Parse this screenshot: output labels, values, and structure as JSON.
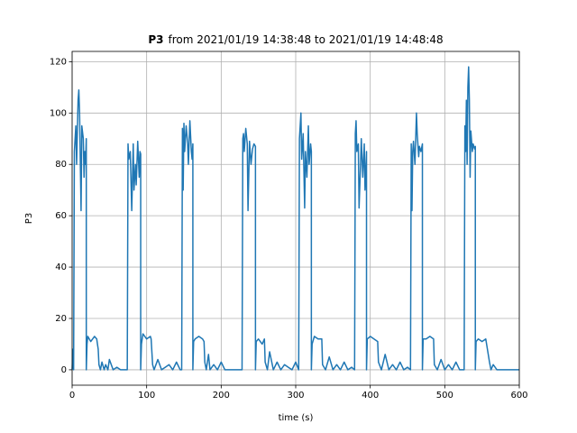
{
  "chart_data": {
    "type": "line",
    "title": [
      "P3",
      "from 2021/01/19 14:38:48 to 2021/01/19 14:48:48"
    ],
    "xlabel": "time (s)",
    "ylabel": "P3",
    "xlim": [
      0,
      600
    ],
    "ylim": [
      -6,
      124
    ],
    "xticks": [
      0,
      100,
      200,
      300,
      400,
      500,
      600
    ],
    "yticks": [
      0,
      20,
      40,
      60,
      80,
      100,
      120
    ],
    "grid": true,
    "color": "#1f77b4",
    "x": [
      0,
      1,
      2,
      3,
      5,
      6,
      8,
      9,
      10,
      12,
      13,
      15,
      16,
      17,
      18,
      19,
      19,
      20,
      21,
      25,
      30,
      33,
      35,
      36,
      38,
      40,
      43,
      45,
      48,
      50,
      55,
      60,
      65,
      70,
      74,
      75,
      76,
      78,
      80,
      82,
      83,
      85,
      86,
      88,
      90,
      91,
      92,
      92,
      93,
      95,
      100,
      105,
      106,
      108,
      110,
      115,
      120,
      125,
      130,
      135,
      140,
      145,
      147,
      148,
      149,
      150,
      151,
      152,
      153,
      155,
      156,
      158,
      160,
      161,
      162,
      162,
      163,
      165,
      170,
      175,
      177,
      178,
      180,
      183,
      185,
      190,
      195,
      200,
      205,
      210,
      220,
      228,
      229,
      230,
      231,
      233,
      235,
      236,
      238,
      240,
      242,
      244,
      246,
      246,
      247,
      250,
      255,
      258,
      259,
      262,
      265,
      270,
      275,
      280,
      285,
      290,
      295,
      300,
      304,
      305,
      306,
      307,
      308,
      310,
      312,
      313,
      315,
      317,
      318,
      320,
      321,
      321,
      322,
      325,
      330,
      335,
      336,
      340,
      345,
      350,
      355,
      360,
      365,
      370,
      375,
      379,
      380,
      381,
      382,
      384,
      385,
      387,
      388,
      390,
      392,
      393,
      395,
      395,
      396,
      400,
      405,
      410,
      411,
      415,
      420,
      425,
      430,
      435,
      440,
      445,
      450,
      454,
      455,
      456,
      457,
      458,
      460,
      462,
      463,
      465,
      466,
      468,
      470,
      470,
      471,
      475,
      480,
      485,
      486,
      490,
      495,
      500,
      505,
      510,
      515,
      520,
      526,
      527,
      528,
      529,
      530,
      531,
      532,
      533,
      534,
      535,
      537,
      538,
      540,
      541,
      541,
      542,
      545,
      550,
      555,
      560,
      562,
      565,
      570,
      580,
      590,
      600
    ],
    "values": [
      0,
      8,
      0,
      85,
      95,
      80,
      105,
      109,
      100,
      62,
      95,
      90,
      75,
      85,
      80,
      90,
      0,
      10,
      13,
      11,
      13,
      12,
      8,
      2,
      0,
      3,
      0,
      2,
      0,
      4,
      0,
      1,
      0,
      0,
      0,
      88,
      82,
      85,
      62,
      88,
      70,
      80,
      72,
      89,
      75,
      85,
      84,
      0,
      10,
      14,
      12,
      13,
      12,
      2,
      0,
      4,
      0,
      1,
      2,
      0,
      3,
      0,
      0,
      94,
      70,
      96,
      85,
      90,
      95,
      88,
      80,
      97,
      85,
      82,
      88,
      0,
      11,
      12,
      13,
      12,
      11,
      3,
      0,
      6,
      0,
      2,
      0,
      3,
      0,
      0,
      0,
      0,
      90,
      92,
      85,
      94,
      88,
      62,
      89,
      80,
      86,
      88,
      87,
      0,
      11,
      12,
      10,
      12,
      3,
      0,
      7,
      0,
      3,
      0,
      2,
      1,
      0,
      3,
      0,
      90,
      95,
      100,
      82,
      92,
      63,
      85,
      75,
      95,
      80,
      88,
      85,
      0,
      10,
      13,
      12,
      12,
      2,
      0,
      5,
      0,
      2,
      0,
      3,
      0,
      1,
      0,
      92,
      97,
      85,
      88,
      63,
      80,
      90,
      75,
      88,
      70,
      85,
      0,
      12,
      13,
      12,
      11,
      3,
      0,
      6,
      0,
      2,
      0,
      3,
      0,
      1,
      0,
      88,
      62,
      85,
      89,
      80,
      100,
      92,
      83,
      87,
      85,
      88,
      0,
      12,
      12,
      13,
      12,
      2,
      0,
      4,
      0,
      2,
      0,
      3,
      0,
      0,
      95,
      85,
      105,
      80,
      110,
      118,
      105,
      75,
      93,
      85,
      88,
      86,
      87,
      0,
      11,
      12,
      11,
      12,
      3,
      0,
      2,
      0,
      0,
      0,
      0
    ]
  }
}
